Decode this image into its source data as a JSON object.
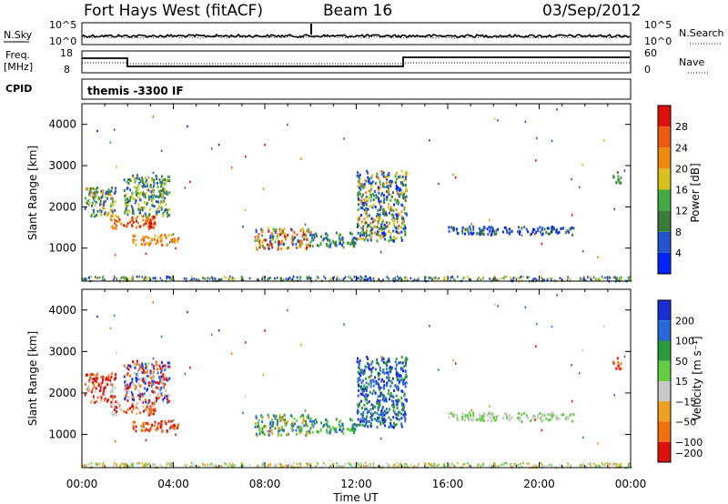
{
  "header": {
    "station": "Fort Hays West (fitACF)",
    "beam": "Beam 16",
    "date": "03/Sep/2012"
  },
  "strips": {
    "nsky_label": "N.Sky",
    "nsky_ticks": [
      "10^5",
      "10^0"
    ],
    "nsearch_label": "N.Search",
    "nsearch_ticks": [
      "10^5",
      "10^0"
    ],
    "freq_label_1": "Freq.",
    "freq_label_2": "[MHz]",
    "freq_ticks": [
      "18",
      "8"
    ],
    "nave_label": "Nave",
    "nave_ticks": [
      "60",
      "0"
    ],
    "cpid_label": "CPID",
    "cpid_value": "themis -3300 IF"
  },
  "chart_data": [
    {
      "type": "heatmap",
      "name": "power",
      "ylabel": "Slant Range [km]",
      "xlabel": "",
      "ylim": [
        200,
        4500
      ],
      "yticks": [
        "1000",
        "2000",
        "3000",
        "4000"
      ],
      "xticks": [
        "00:00",
        "04:00",
        "08:00",
        "12:00",
        "16:00",
        "20:00",
        "00:00"
      ],
      "colorbar": {
        "label": "Power [dB]",
        "ticks": [
          "4",
          "8",
          "12",
          "16",
          "20",
          "24",
          "28"
        ],
        "colors": [
          "#0022ff",
          "#2255cc",
          "#3a7a3a",
          "#44aa44",
          "#d8c020",
          "#ee8a10",
          "#ee5a10",
          "#e01010"
        ]
      }
    },
    {
      "type": "heatmap",
      "name": "velocity",
      "ylabel": "Slant Range [km]",
      "xlabel": "Time UT",
      "ylim": [
        200,
        4500
      ],
      "yticks": [
        "1000",
        "2000",
        "3000",
        "4000"
      ],
      "xticks": [
        "00:00",
        "04:00",
        "08:00",
        "12:00",
        "16:00",
        "20:00",
        "00:00"
      ],
      "colorbar": {
        "label": "Velocity [m s⁻¹]",
        "ticks": [
          "200",
          "100",
          "50",
          "15",
          "−15",
          "−50",
          "−100",
          "−200"
        ],
        "colors": [
          "#1a2fd0",
          "#2a6ad8",
          "#2a9a3a",
          "#66cc44",
          "#c8c8c8",
          "#f0a020",
          "#f07010",
          "#e01010"
        ]
      }
    }
  ]
}
